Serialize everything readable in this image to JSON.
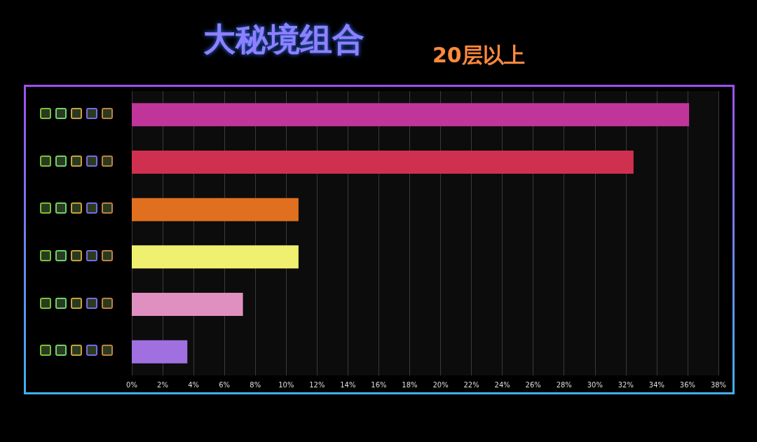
{
  "chart_data": {
    "type": "bar",
    "orientation": "horizontal",
    "title": "大秘境组合",
    "subtitle": "20层以上",
    "categories": [
      null,
      null,
      null,
      null,
      null,
      null
    ],
    "values": [
      36.1,
      32.5,
      10.8,
      10.8,
      7.2,
      3.6
    ],
    "colors": [
      "#c0359a",
      "#d03050",
      "#e07020",
      "#f0f070",
      "#e090c0",
      "#a070e0"
    ],
    "xlim": [
      0,
      38
    ],
    "xticks": [
      {
        "value": 0,
        "label": "0%"
      },
      {
        "value": 2,
        "label": "2%"
      },
      {
        "value": 4,
        "label": "4%"
      },
      {
        "value": 6,
        "label": "6%"
      },
      {
        "value": 8,
        "label": "8%"
      },
      {
        "value": 10,
        "label": "10%"
      },
      {
        "value": 12,
        "label": "12%"
      },
      {
        "value": 14,
        "label": "14%"
      },
      {
        "value": 16,
        "label": "16%"
      },
      {
        "value": 18,
        "label": "18%"
      },
      {
        "value": 20,
        "label": "20%"
      },
      {
        "value": 22,
        "label": "22%"
      },
      {
        "value": 24,
        "label": "24%"
      },
      {
        "value": 26,
        "label": "26%"
      },
      {
        "value": 28,
        "label": "28%"
      },
      {
        "value": 30,
        "label": "30%"
      },
      {
        "value": 32,
        "label": "32%"
      },
      {
        "value": 34,
        "label": "34%"
      },
      {
        "value": 36,
        "label": "36%"
      },
      {
        "value": 38,
        "label": "38%"
      }
    ],
    "grid": "x"
  }
}
